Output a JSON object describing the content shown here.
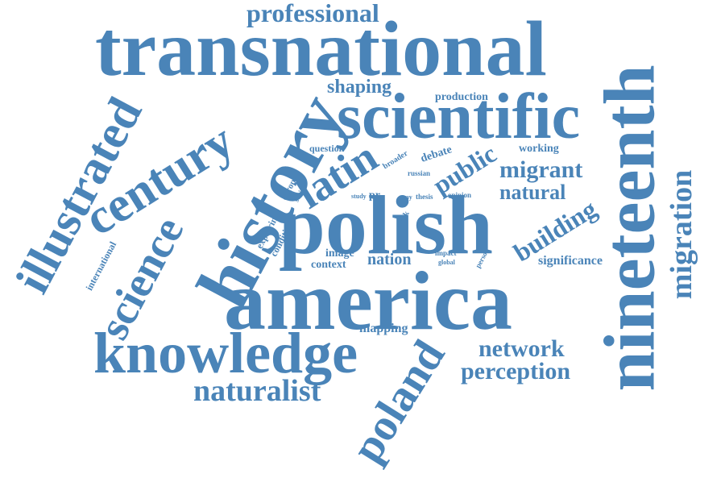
{
  "color": "#4a84b8",
  "background": "#ffffff",
  "words": [
    "transnational",
    "scientific",
    "polish",
    "america",
    "history",
    "nineteenth",
    "knowledge",
    "century",
    "illustrated",
    "poland",
    "latin",
    "science",
    "migration",
    "professional",
    "naturalist",
    "network",
    "perception",
    "migrant",
    "natural",
    "building",
    "public",
    "shaping",
    "nation",
    "significance",
    "mapping",
    "production",
    "working",
    "debate",
    "question",
    "broader",
    "russian",
    "europe",
    "social",
    "international",
    "exploring",
    "condition",
    "image",
    "context",
    "study",
    "case",
    "role",
    "pr",
    "way",
    "thesis",
    "opinion",
    "work",
    "impact",
    "global",
    "person"
  ]
}
